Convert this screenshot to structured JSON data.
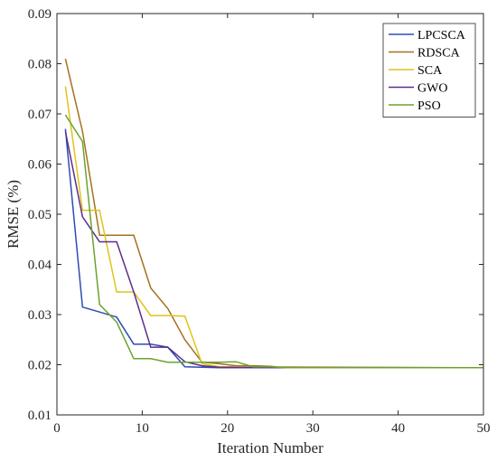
{
  "chart_data": {
    "type": "line",
    "title": "",
    "xlabel": "Iteration Number",
    "ylabel": "RMSE (%)",
    "xlim": [
      0,
      50
    ],
    "ylim": [
      0.01,
      0.09
    ],
    "xticks": [
      0,
      10,
      20,
      30,
      40,
      50
    ],
    "yticks": [
      0.01,
      0.02,
      0.03,
      0.04,
      0.05,
      0.06,
      0.07,
      0.08,
      0.09
    ],
    "xtick_labels": [
      "0",
      "10",
      "20",
      "30",
      "40",
      "50"
    ],
    "ytick_labels": [
      "0.01",
      "0.02",
      "0.03",
      "0.04",
      "0.05",
      "0.06",
      "0.07",
      "0.08",
      "0.09"
    ],
    "grid": false,
    "legend_position": "top-right",
    "series": [
      {
        "name": "LPCSCA",
        "color": "#2E4BB5",
        "x": [
          1,
          3,
          5,
          7,
          9,
          11,
          13,
          15,
          17,
          19,
          50
        ],
        "y": [
          0.067,
          0.0315,
          0.0305,
          0.0295,
          0.0241,
          0.0241,
          0.0235,
          0.0196,
          0.0195,
          0.0194,
          0.0194
        ]
      },
      {
        "name": "RDSCA",
        "color": "#A5711F",
        "x": [
          1,
          3,
          5,
          7,
          9,
          11,
          13,
          15,
          17,
          19,
          21,
          23,
          25,
          27,
          50
        ],
        "y": [
          0.081,
          0.0665,
          0.0458,
          0.0458,
          0.0458,
          0.0353,
          0.0312,
          0.025,
          0.0205,
          0.0202,
          0.0198,
          0.0198,
          0.0197,
          0.0194,
          0.0194
        ]
      },
      {
        "name": "SCA",
        "color": "#E1C31A",
        "x": [
          1,
          3,
          5,
          7,
          9,
          11,
          13,
          15,
          17,
          19,
          50
        ],
        "y": [
          0.0755,
          0.0508,
          0.0508,
          0.0345,
          0.0345,
          0.0298,
          0.0298,
          0.0297,
          0.0202,
          0.0196,
          0.0194
        ]
      },
      {
        "name": "GWO",
        "color": "#5B2E8E",
        "x": [
          1,
          3,
          5,
          7,
          9,
          11,
          13,
          15,
          17,
          19,
          50
        ],
        "y": [
          0.0665,
          0.0495,
          0.0445,
          0.0445,
          0.0345,
          0.0235,
          0.0235,
          0.0206,
          0.0198,
          0.0195,
          0.0194
        ]
      },
      {
        "name": "PSO",
        "color": "#6BA32D",
        "x": [
          1,
          3,
          5,
          7,
          9,
          11,
          13,
          15,
          17,
          19,
          21,
          23,
          25,
          27,
          50
        ],
        "y": [
          0.0698,
          0.0645,
          0.032,
          0.0285,
          0.0212,
          0.0212,
          0.0205,
          0.0205,
          0.0205,
          0.0205,
          0.0206,
          0.0196,
          0.0196,
          0.0194,
          0.0194
        ]
      }
    ]
  }
}
